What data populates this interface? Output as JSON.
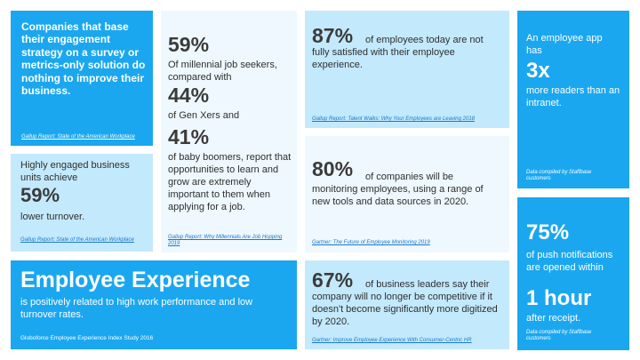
{
  "cards": {
    "survey": {
      "text": "Companies that base their engagement strategy on a survey or metrics-only solution do nothing to improve their business.",
      "source": "Gallup Report: State of the American Workplace"
    },
    "turnover": {
      "text_before": "Highly engaged business units achieve",
      "stat": "59%",
      "text_after": "lower turnover.",
      "source": "Gallup Report: State of the American Workplace"
    },
    "millennial": {
      "stat1": "59%",
      "text1": "Of millennial job seekers, compared with",
      "stat2": "44%",
      "text2": "of Gen Xers and",
      "stat3": "41%",
      "text3": "of baby boomers, report that opportunities to learn and grow are extremely important to them when applying for a job.",
      "source": "Gallup Report: Why Millennials Are Job Hopping 2019"
    },
    "satisfied": {
      "stat": "87%",
      "text": "of employees today are not fully satisfied with their employee experience.",
      "source": "Gallup Report: Talent Walks: Why Your Employees are Leaving 2018"
    },
    "monitoring": {
      "stat": "80%",
      "text": "of companies will be monitoring employees, using a range of new tools and data sources in 2020.",
      "source": "Gartner: The Future of Employee Monitoring 2019"
    },
    "leaders": {
      "stat": "67%",
      "text": "of business leaders say their company will no longer be competitive if it doesn't become significantly more digitized by 2020.",
      "source": "Gartner: Improve Employee Experience With Consumer-Centric HR"
    },
    "app": {
      "text_before": "An employee app has",
      "stat": "3x",
      "text_after": "more readers than an intranet.",
      "source": "Data compiled by Staffbase customers"
    },
    "push": {
      "stat": "75%",
      "text1": "of push notifications are opened within",
      "stat2": "1 hour",
      "text2": "after receipt.",
      "source": "Data compiled by Staffbase customers"
    },
    "experience": {
      "title": "Employee Experience",
      "text": "is positively related to high work performance and low turnover rates.",
      "source": "Globoforce Employee Experience Index Study 2016"
    }
  }
}
